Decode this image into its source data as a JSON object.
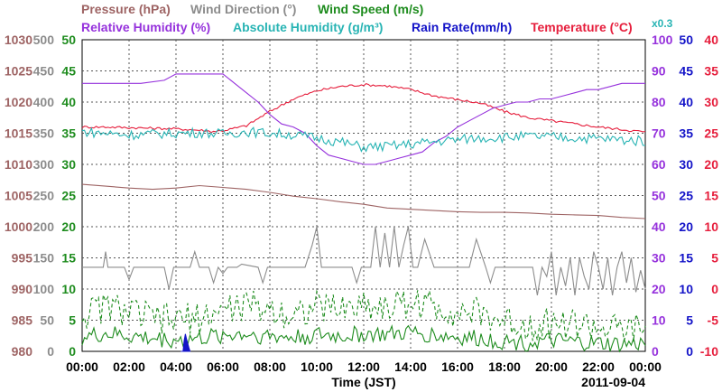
{
  "chart_data": {
    "type": "line",
    "date": "2011-09-04",
    "xlabel": "Time (JST)",
    "x_ticks": [
      "00:00",
      "02:00",
      "04:00",
      "06:00",
      "08:00",
      "10:00",
      "12:00",
      "14:00",
      "16:00",
      "18:00",
      "20:00",
      "22:00",
      "00:00"
    ],
    "x_range_hours": [
      0,
      24
    ],
    "grid": true,
    "legend_row1": [
      {
        "text": "Pressure (hPa)",
        "color": "#9e6464"
      },
      {
        "text": "Wind Direction (°)",
        "color": "#8c8c8c"
      },
      {
        "text": "Wind Speed (m/s)",
        "color": "#1e8c1e"
      }
    ],
    "legend_row2": [
      {
        "text": "Relative Humidity (%)",
        "color": "#9632dc"
      },
      {
        "text": "Absolute Humidity (g/m³)",
        "color": "#28b4b4"
      },
      {
        "text": "Rain Rate(mm/h)",
        "color": "#1414c8"
      },
      {
        "text": "Temperature (°C)",
        "color": "#e61e3c"
      },
      {
        "text": "x0.3",
        "color": "#28b4b4"
      }
    ],
    "axes": {
      "pressure": {
        "color": "#9e6464",
        "range": [
          980,
          1030
        ],
        "ticks": [
          "1030",
          "1025",
          "1020",
          "1015",
          "1010",
          "1005",
          "1000",
          "995",
          "990",
          "985",
          "980"
        ]
      },
      "direction": {
        "color": "#8c8c8c",
        "range": [
          0,
          500
        ],
        "ticks": [
          "500",
          "450",
          "400",
          "350",
          "300",
          "250",
          "200",
          "150",
          "100",
          "50",
          "0"
        ]
      },
      "wind_speed": {
        "color": "#1e8c1e",
        "range": [
          0,
          50
        ],
        "ticks": [
          "50",
          "45",
          "40",
          "35",
          "30",
          "25",
          "20",
          "15",
          "10",
          "5",
          "0"
        ]
      },
      "humidity": {
        "color": "#9632dc",
        "range": [
          0,
          100
        ],
        "ticks": [
          "100",
          "90",
          "80",
          "70",
          "60",
          "50",
          "40",
          "30",
          "20",
          "10",
          "0"
        ]
      },
      "rain": {
        "color": "#1414c8",
        "range": [
          0,
          50
        ],
        "ticks": [
          "50",
          "45",
          "40",
          "35",
          "30",
          "25",
          "20",
          "15",
          "10",
          "5",
          "0"
        ]
      },
      "temperature": {
        "color": "#e61e3c",
        "range": [
          -10,
          40
        ],
        "ticks": [
          "40",
          "35",
          "30",
          "25",
          "20",
          "15",
          "10",
          "5",
          "0",
          "-5",
          "-10"
        ]
      }
    },
    "series": [
      {
        "name": "Pressure (hPa)",
        "axis": "pressure",
        "color": "#9e6464",
        "x": [
          0,
          1,
          2,
          3,
          4,
          5,
          6,
          7,
          8,
          9,
          10,
          11,
          12,
          13,
          14,
          15,
          16,
          17,
          18,
          19,
          20,
          21,
          22,
          23,
          24
        ],
        "y": [
          1006.8,
          1006.5,
          1006.2,
          1006.0,
          1006.2,
          1006.6,
          1006.3,
          1006.0,
          1005.5,
          1004.9,
          1004.5,
          1004.0,
          1003.6,
          1003.0,
          1002.8,
          1002.6,
          1002.4,
          1002.3,
          1002.3,
          1002.2,
          1002.0,
          1001.9,
          1001.8,
          1001.5,
          1001.3
        ]
      },
      {
        "name": "Temperature (°C)",
        "axis": "temperature",
        "color": "#e61e3c",
        "x": [
          0,
          1,
          2,
          3,
          4,
          5,
          5.5,
          6,
          7,
          8,
          9,
          10,
          11,
          12,
          13,
          14,
          15,
          16,
          17,
          18,
          19,
          20,
          21,
          22,
          23,
          24
        ],
        "y": [
          26.0,
          26.0,
          25.9,
          25.8,
          25.7,
          25.5,
          25.3,
          25.4,
          26.2,
          28.5,
          30.5,
          31.8,
          32.5,
          32.8,
          32.6,
          32.0,
          31.0,
          30.4,
          29.8,
          28.5,
          27.5,
          27.0,
          26.5,
          26.0,
          25.6,
          25.2
        ]
      },
      {
        "name": "Relative Humidity (%)",
        "axis": "humidity",
        "color": "#9632dc",
        "x": [
          0,
          2.5,
          3.5,
          4,
          6.0,
          6.5,
          7,
          7.5,
          8,
          8.5,
          9,
          9.5,
          10,
          10.5,
          11,
          11.5,
          12,
          12.5,
          13,
          13.5,
          14,
          14.5,
          15,
          15.5,
          16,
          16.5,
          17,
          17.5,
          18,
          18.5,
          19,
          19.5,
          20,
          20.5,
          21,
          21.5,
          22,
          22.5,
          23,
          24
        ],
        "y": [
          86,
          86,
          87,
          89,
          89,
          86,
          83,
          80,
          76,
          73,
          72,
          70,
          66,
          63,
          62,
          61,
          60,
          60,
          61,
          62,
          63,
          64,
          67,
          69,
          72,
          74,
          76,
          78,
          79,
          80,
          80,
          81,
          81,
          82,
          83,
          84,
          84,
          85,
          86,
          86
        ]
      },
      {
        "name": "Absolute Humidity (g/m³)",
        "axis": "humidity",
        "color": "#28b4b4",
        "x": [
          0,
          1,
          2,
          3,
          4,
          5,
          6,
          7,
          8,
          9,
          10,
          11,
          12,
          13,
          14,
          15,
          16,
          17,
          18,
          19,
          20,
          21,
          22,
          23,
          24
        ],
        "y": [
          70.5,
          70.0,
          69.5,
          69.8,
          70.0,
          70.2,
          69.8,
          70.5,
          70.0,
          69.5,
          68.5,
          67.2,
          65.5,
          65.8,
          66.5,
          67.3,
          68.0,
          68.5,
          68.7,
          69.0,
          68.8,
          68.5,
          68.3,
          67.9,
          67.5
        ]
      },
      {
        "name": "Wind Direction (°)",
        "axis": "direction",
        "color": "#8c8c8c",
        "x": [
          0,
          0.9,
          1.0,
          1.1,
          1.8,
          2.0,
          2.2,
          3.5,
          3.7,
          3.9,
          4.6,
          4.8,
          5.0,
          5.4,
          5.6,
          5.8,
          6.0,
          6.2,
          6.4,
          6.6,
          6.8,
          7.5,
          7.7,
          7.9,
          8.5,
          9.5,
          9.8,
          10.0,
          10.2,
          10.6,
          11.5,
          11.7,
          11.9,
          12.3,
          12.5,
          12.7,
          12.9,
          13.1,
          13.3,
          13.5,
          13.7,
          13.9,
          14.1,
          14.3,
          14.6,
          15.0,
          16.0,
          16.5,
          16.8,
          17.2,
          17.4,
          17.6,
          17.8,
          18.5,
          19.2,
          19.4,
          19.6,
          19.8,
          20.0,
          20.2,
          20.4,
          20.6,
          20.8,
          21.0,
          21.2,
          21.4,
          21.6,
          21.8,
          22.0,
          22.2,
          22.4,
          22.6,
          22.8,
          23.0,
          23.2,
          23.4,
          23.6,
          23.8,
          24.0
        ],
        "y": [
          135,
          135,
          160,
          135,
          135,
          115,
          135,
          135,
          100,
          135,
          135,
          160,
          135,
          135,
          110,
          135,
          125,
          135,
          135,
          135,
          140,
          135,
          110,
          135,
          135,
          135,
          170,
          200,
          135,
          135,
          135,
          110,
          135,
          135,
          200,
          135,
          190,
          135,
          200,
          135,
          170,
          200,
          135,
          135,
          180,
          135,
          135,
          135,
          180,
          135,
          110,
          135,
          135,
          135,
          135,
          90,
          135,
          120,
          160,
          90,
          135,
          105,
          150,
          90,
          150,
          120,
          100,
          160,
          135,
          100,
          150,
          90,
          135,
          160,
          110,
          150,
          95,
          130,
          100
        ]
      },
      {
        "name": "Wind Speed (m/s)",
        "axis": "wind_speed",
        "color": "#1e8c1e",
        "x": [
          0,
          1,
          2,
          3,
          4,
          5,
          6,
          7,
          8,
          9,
          10,
          11,
          12,
          13,
          14,
          15,
          16,
          17,
          18,
          19,
          20,
          21,
          22,
          23,
          24
        ],
        "y": [
          2.2,
          2.8,
          2.4,
          2.0,
          1.8,
          2.0,
          2.6,
          2.8,
          2.4,
          2.2,
          2.6,
          2.4,
          2.8,
          2.6,
          3.0,
          2.6,
          2.2,
          2.0,
          1.6,
          1.4,
          1.6,
          1.4,
          1.2,
          1.0,
          1.2
        ]
      },
      {
        "name": "Wind Speed max",
        "axis": "wind_speed",
        "color": "#1e8c1e",
        "dashed": true,
        "x": [
          0,
          1,
          2,
          3,
          4,
          5,
          6,
          7,
          8,
          9,
          10,
          11,
          12,
          13,
          14,
          15,
          16,
          17,
          18,
          19,
          20,
          21,
          22,
          23,
          24
        ],
        "y": [
          5.8,
          7.2,
          6.4,
          5.2,
          5.0,
          5.4,
          6.6,
          7.4,
          6.8,
          6.0,
          7.2,
          6.8,
          7.6,
          7.0,
          8.0,
          7.2,
          6.4,
          6.0,
          4.8,
          4.2,
          4.6,
          4.4,
          3.8,
          3.2,
          3.6
        ]
      },
      {
        "name": "Rain Rate(mm/h)",
        "axis": "rain",
        "color": "#1414c8",
        "x": [
          4.2,
          4.3,
          4.35,
          4.4,
          4.45,
          4.55,
          4.6
        ],
        "y": [
          0,
          0,
          1.8,
          2.8,
          2.0,
          0.6,
          0
        ]
      }
    ]
  }
}
